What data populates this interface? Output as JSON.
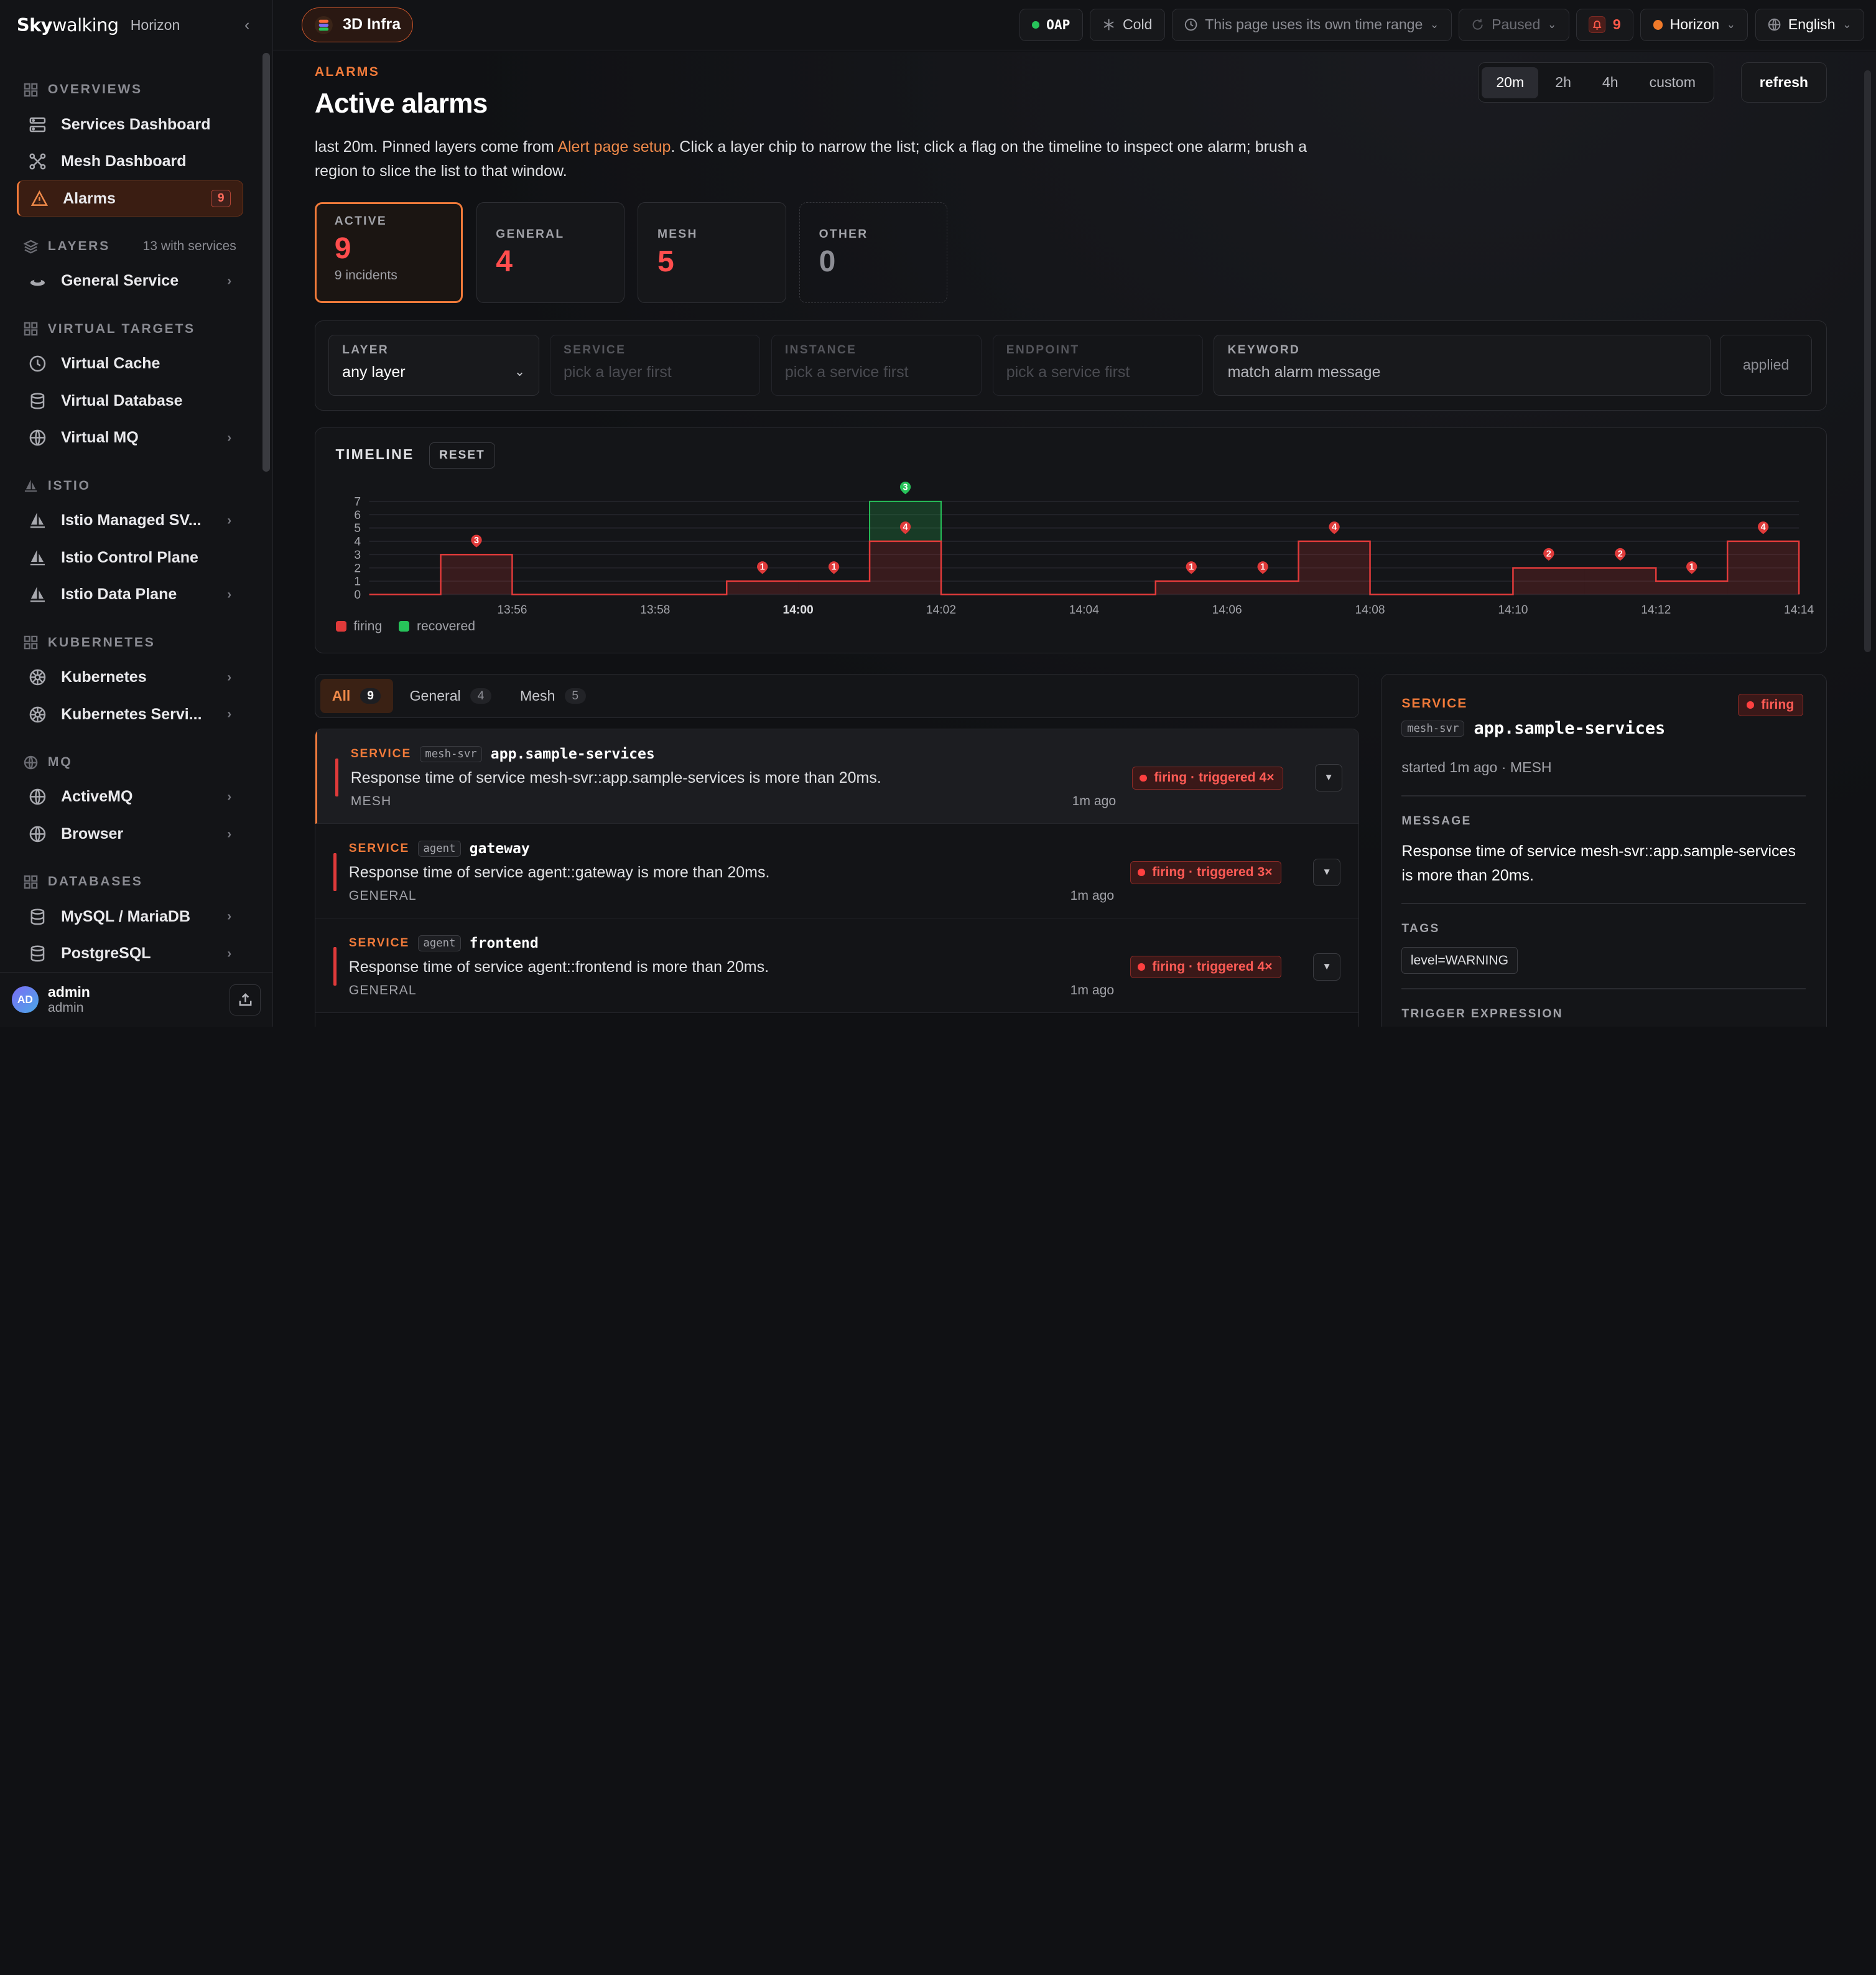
{
  "sidebar": {
    "logo_main": "Sky",
    "logo_rest": "walking",
    "product": "Horizon",
    "collapse_icon": "chevron-left-icon",
    "groups": {
      "overviews": "OVERVIEWS",
      "layers": "LAYERS",
      "layers_extra": "13 with services",
      "virtual": "VIRTUAL TARGETS",
      "istio": "ISTIO",
      "kubernetes": "KUBERNETES",
      "mq": "MQ",
      "databases": "DATABASES"
    },
    "items": {
      "services_dashboard": "Services Dashboard",
      "mesh_dashboard": "Mesh Dashboard",
      "alarms": "Alarms",
      "alarms_badge": "9",
      "general_service": "General Service",
      "virtual_cache": "Virtual Cache",
      "virtual_database": "Virtual Database",
      "virtual_mq": "Virtual MQ",
      "istio_managed": "Istio Managed SV...",
      "istio_control": "Istio Control Plane",
      "istio_data": "Istio Data Plane",
      "kubernetes": "Kubernetes",
      "kubernetes_svc": "Kubernetes Servi...",
      "activemq": "ActiveMQ",
      "browser": "Browser",
      "mysql": "MySQL / MariaDB",
      "postgresql": "PostgreSQL"
    },
    "user": {
      "initials": "AD",
      "name": "admin",
      "role": "admin"
    }
  },
  "topbar": {
    "product": "3D Infra",
    "oap": "OAP",
    "cold": "Cold",
    "time_notice": "This page uses its own time range",
    "paused": "Paused",
    "alarm_count": "9",
    "env": "Horizon",
    "language": "English"
  },
  "page": {
    "eyebrow": "ALARMS",
    "title": "Active alarms",
    "intro_pre": "last 20m. Pinned layers come from ",
    "intro_link": "Alert page setup",
    "intro_post": ". Click a layer chip to narrow the list; click a flag on the timeline to inspect one alarm; brush a region to slice the list to that window.",
    "ranges": [
      "20m",
      "2h",
      "4h",
      "custom"
    ],
    "selected_range": "20m",
    "refresh": "refresh"
  },
  "stats": {
    "active": {
      "label": "ACTIVE",
      "value": "9",
      "sub": "9 incidents"
    },
    "general": {
      "label": "GENERAL",
      "value": "4"
    },
    "mesh": {
      "label": "MESH",
      "value": "5"
    },
    "other": {
      "label": "OTHER",
      "value": "0"
    }
  },
  "filters": {
    "layer": {
      "label": "LAYER",
      "value": "any layer"
    },
    "service": {
      "label": "SERVICE",
      "placeholder": "pick a layer first"
    },
    "instance": {
      "label": "INSTANCE",
      "placeholder": "pick a service first"
    },
    "endpoint": {
      "label": "ENDPOINT",
      "placeholder": "pick a service first"
    },
    "keyword": {
      "label": "KEYWORD",
      "placeholder": "match alarm message"
    },
    "applied": "applied"
  },
  "timeline": {
    "title": "TIMELINE",
    "reset": "RESET",
    "legend_firing": "firing",
    "legend_recovered": "recovered",
    "colors": {
      "firing": "#e03a3a",
      "recovered": "#27c35a"
    }
  },
  "chart_data": {
    "type": "area",
    "title": "TIMELINE",
    "xlabel": "",
    "ylabel": "",
    "ylim": [
      0,
      7
    ],
    "yticks": [
      0,
      1,
      2,
      3,
      4,
      5,
      6,
      7
    ],
    "xticks": [
      "13:56",
      "13:58",
      "14:00",
      "14:02",
      "14:04",
      "14:06",
      "14:08",
      "14:10",
      "14:12",
      "14:14"
    ],
    "xticks_bold": [
      "14:00"
    ],
    "series": [
      {
        "name": "firing",
        "x": [
          "13:54",
          "13:55",
          "13:56",
          "13:57",
          "13:58",
          "13:59",
          "14:00",
          "14:01",
          "14:02",
          "14:03",
          "14:04",
          "14:05",
          "14:06",
          "14:07",
          "14:08",
          "14:09",
          "14:10",
          "14:11",
          "14:12",
          "14:13",
          "14:14"
        ],
        "values": [
          0,
          3,
          0,
          0,
          0,
          1,
          1,
          4,
          0,
          0,
          0,
          1,
          1,
          4,
          0,
          0,
          2,
          2,
          1,
          4,
          0
        ]
      },
      {
        "name": "recovered",
        "x": [
          "14:01"
        ],
        "values": [
          3
        ]
      }
    ],
    "flags": [
      {
        "x": "13:55",
        "label": "3",
        "series": "firing"
      },
      {
        "x": "13:59",
        "label": "1",
        "series": "firing"
      },
      {
        "x": "14:00",
        "label": "1",
        "series": "firing"
      },
      {
        "x": "14:01",
        "label": "4",
        "series": "firing"
      },
      {
        "x": "14:01",
        "label": "3",
        "series": "recovered"
      },
      {
        "x": "14:05",
        "label": "1",
        "series": "firing"
      },
      {
        "x": "14:06",
        "label": "1",
        "series": "firing"
      },
      {
        "x": "14:07",
        "label": "4",
        "series": "firing"
      },
      {
        "x": "14:10",
        "label": "2",
        "series": "firing"
      },
      {
        "x": "14:11",
        "label": "2",
        "series": "firing"
      },
      {
        "x": "14:12",
        "label": "1",
        "series": "firing"
      },
      {
        "x": "14:13",
        "label": "4",
        "series": "firing"
      }
    ],
    "legend": "bottom-left",
    "grid": true
  },
  "list": {
    "tabs": [
      {
        "label": "All",
        "count": "9"
      },
      {
        "label": "General",
        "count": "4"
      },
      {
        "label": "Mesh",
        "count": "5"
      }
    ],
    "rows": [
      {
        "scope": "SERVICE",
        "layer_tag": "mesh-svr",
        "name": "app.sample-services",
        "message": "Response time of service mesh-svr::app.sample-services is more than 20ms.",
        "layer": "MESH",
        "status": "firing · triggered 4×",
        "ago": "1m ago"
      },
      {
        "scope": "SERVICE",
        "layer_tag": "agent",
        "name": "gateway",
        "message": "Response time of service agent::gateway is more than 20ms.",
        "layer": "GENERAL",
        "status": "firing · triggered 3×",
        "ago": "1m ago"
      },
      {
        "scope": "SERVICE",
        "layer_tag": "agent",
        "name": "frontend",
        "message": "Response time of service agent::frontend is more than 20ms.",
        "layer": "GENERAL",
        "status": "firing · triggered 4×",
        "ago": "1m ago"
      }
    ]
  },
  "detail": {
    "scope": "SERVICE",
    "status": "firing",
    "layer_tag": "mesh-svr",
    "name": "app.sample-services",
    "meta": "started 1m ago · MESH",
    "message_label": "MESSAGE",
    "message": "Response time of service mesh-svr::app.sample-services is more than 20ms.",
    "tags_label": "TAGS",
    "tag": "level=WARNING",
    "trigger_label": "TRIGGER EXPRESSION"
  }
}
